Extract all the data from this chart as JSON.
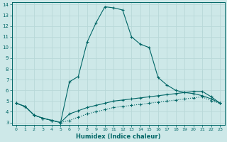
{
  "xlabel": "Humidex (Indice chaleur)",
  "bg_color": "#cde8e8",
  "line_color": "#006666",
  "grid_color": "#b8d8d8",
  "xlim": [
    -0.5,
    23.5
  ],
  "ylim": [
    2.8,
    14.2
  ],
  "xticks": [
    0,
    1,
    2,
    3,
    4,
    5,
    6,
    7,
    8,
    9,
    10,
    11,
    12,
    13,
    14,
    15,
    16,
    17,
    18,
    19,
    20,
    21,
    22,
    23
  ],
  "yticks": [
    3,
    4,
    5,
    6,
    7,
    8,
    9,
    10,
    11,
    12,
    13,
    14
  ],
  "series": [
    {
      "x": [
        0,
        1,
        2,
        3,
        4,
        5,
        6,
        7,
        8,
        9,
        10,
        11,
        12,
        13,
        14,
        15,
        16,
        17,
        18,
        19,
        20,
        21,
        22,
        23
      ],
      "y": [
        4.8,
        4.5,
        3.7,
        3.4,
        3.2,
        3.0,
        6.8,
        7.3,
        10.5,
        12.3,
        13.8,
        13.7,
        13.5,
        11.0,
        10.3,
        10.0,
        7.2,
        6.5,
        6.0,
        5.8,
        5.7,
        5.5,
        5.2,
        4.8
      ],
      "style": "solid"
    },
    {
      "x": [
        0,
        1,
        2,
        3,
        4,
        5,
        6,
        7,
        8,
        9,
        10,
        11,
        12,
        13,
        14,
        15,
        16,
        17,
        18,
        19,
        20,
        21,
        22,
        23
      ],
      "y": [
        4.8,
        4.5,
        3.7,
        3.4,
        3.2,
        3.0,
        3.8,
        4.1,
        4.4,
        4.6,
        4.8,
        5.0,
        5.1,
        5.2,
        5.3,
        5.4,
        5.5,
        5.6,
        5.7,
        5.8,
        5.9,
        5.9,
        5.4,
        4.8
      ],
      "style": "solid"
    },
    {
      "x": [
        0,
        1,
        2,
        3,
        4,
        5,
        6,
        7,
        8,
        9,
        10,
        11,
        12,
        13,
        14,
        15,
        16,
        17,
        18,
        19,
        20,
        21,
        22,
        23
      ],
      "y": [
        4.8,
        4.5,
        3.7,
        3.4,
        3.2,
        3.0,
        3.2,
        3.5,
        3.8,
        4.0,
        4.2,
        4.4,
        4.5,
        4.6,
        4.7,
        4.8,
        4.9,
        5.0,
        5.1,
        5.2,
        5.3,
        5.4,
        5.0,
        4.8
      ],
      "style": "dotted"
    }
  ]
}
